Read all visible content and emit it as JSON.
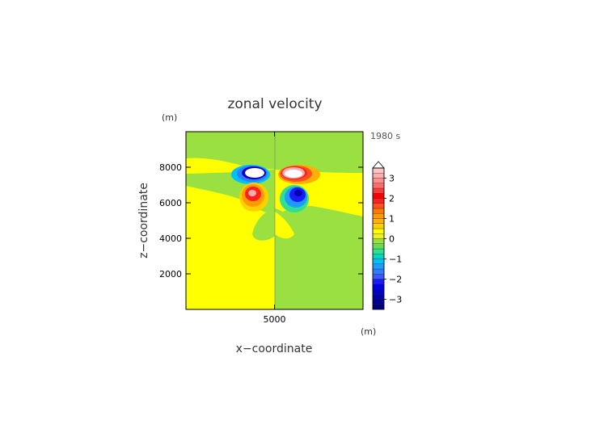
{
  "chart_data": {
    "type": "heatmap",
    "title": "zonal velocity",
    "time_label": "1980 s",
    "x_unit": "(m)",
    "z_unit": "(m)",
    "xlabel": "x−coordinate",
    "ylabel": "z−coordinate",
    "xlim": [
      0,
      10000
    ],
    "ylim": [
      0,
      10000
    ],
    "x_ticks": [
      {
        "value": 5000,
        "label": "5000"
      }
    ],
    "y_ticks": [
      {
        "value": 2000,
        "label": "2000"
      },
      {
        "value": 4000,
        "label": "4000"
      },
      {
        "value": 6000,
        "label": "6000"
      },
      {
        "value": 8000,
        "label": "8000"
      }
    ],
    "colorbar": {
      "levels": [
        {
          "from": -3.5,
          "to": -3.25,
          "color": "#000080"
        },
        {
          "from": -3.25,
          "to": -3.0,
          "color": "#00008c"
        },
        {
          "from": -3.0,
          "to": -2.75,
          "color": "#0000a8"
        },
        {
          "from": -2.75,
          "to": -2.5,
          "color": "#0000c8"
        },
        {
          "from": -2.5,
          "to": -2.25,
          "color": "#0000e6"
        },
        {
          "from": -2.25,
          "to": -2.0,
          "color": "#1a1aff"
        },
        {
          "from": -2.0,
          "to": -1.75,
          "color": "#3c5aff"
        },
        {
          "from": -1.75,
          "to": -1.5,
          "color": "#2f7dff"
        },
        {
          "from": -1.5,
          "to": -1.25,
          "color": "#1e9bff"
        },
        {
          "from": -1.25,
          "to": -1.0,
          "color": "#00bfff"
        },
        {
          "from": -1.0,
          "to": -0.75,
          "color": "#00d8c0"
        },
        {
          "from": -0.75,
          "to": -0.5,
          "color": "#30e090"
        },
        {
          "from": -0.5,
          "to": -0.25,
          "color": "#66dd55"
        },
        {
          "from": -0.25,
          "to": 0.0,
          "color": "#99e040"
        },
        {
          "from": 0.0,
          "to": 0.25,
          "color": "#eef020"
        },
        {
          "from": 0.25,
          "to": 0.5,
          "color": "#ffff00"
        },
        {
          "from": 0.5,
          "to": 0.75,
          "color": "#ffd000"
        },
        {
          "from": 0.75,
          "to": 1.0,
          "color": "#ffb000"
        },
        {
          "from": 1.0,
          "to": 1.25,
          "color": "#ff9a00"
        },
        {
          "from": 1.25,
          "to": 1.5,
          "color": "#ff7a00"
        },
        {
          "from": 1.5,
          "to": 1.75,
          "color": "#ff5020"
        },
        {
          "from": 1.75,
          "to": 2.0,
          "color": "#ff2020"
        },
        {
          "from": 2.0,
          "to": 2.25,
          "color": "#ff0000"
        },
        {
          "from": 2.25,
          "to": 2.5,
          "color": "#ff3a3a"
        },
        {
          "from": 2.5,
          "to": 2.75,
          "color": "#ff6a6a"
        },
        {
          "from": 2.75,
          "to": 3.0,
          "color": "#ff8f8f"
        },
        {
          "from": 3.0,
          "to": 3.25,
          "color": "#ffacac"
        },
        {
          "from": 3.25,
          "to": 3.5,
          "color": "#ffc4c4"
        }
      ],
      "over_color": "#ffffff",
      "tick_labels": [
        {
          "value": 3,
          "label": "3"
        },
        {
          "value": 2,
          "label": "2"
        },
        {
          "value": 1,
          "label": "1"
        },
        {
          "value": 0,
          "label": "0"
        },
        {
          "value": -1,
          "label": "−1"
        },
        {
          "value": -2,
          "label": "−2"
        },
        {
          "value": -3,
          "label": "−3"
        }
      ]
    }
  }
}
